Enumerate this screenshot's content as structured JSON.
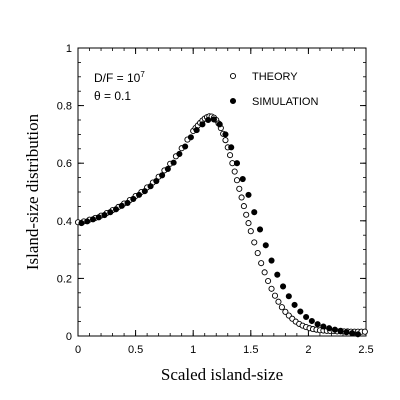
{
  "chart_data": {
    "type": "scatter",
    "xlabel": "Scaled island-size",
    "ylabel": "Island-size distribution",
    "xlim": [
      0,
      2.5
    ],
    "ylim": [
      0,
      1
    ],
    "xticks": [
      0,
      0.5,
      1,
      1.5,
      2,
      2.5
    ],
    "yticks": [
      0,
      0.2,
      0.4,
      0.6,
      0.8,
      1
    ],
    "xtick_labels": [
      "0",
      "0.5",
      "1",
      "1.5",
      "2",
      "2.5"
    ],
    "ytick_labels": [
      "0",
      "0.2",
      "0.4",
      "0.6",
      "0.8",
      "1"
    ],
    "grid": false,
    "legend_position": "top-right",
    "annotations": {
      "line1_prefix": "D/F = 10",
      "line1_exponent": "7",
      "line2": "θ = 0.1"
    },
    "series": [
      {
        "name": "THEORY",
        "marker": "open-circle",
        "x": [
          0.0,
          0.05,
          0.1,
          0.15,
          0.2,
          0.25,
          0.3,
          0.35,
          0.4,
          0.45,
          0.5,
          0.55,
          0.6,
          0.65,
          0.7,
          0.75,
          0.8,
          0.85,
          0.9,
          0.95,
          1.0,
          1.02,
          1.04,
          1.06,
          1.08,
          1.1,
          1.12,
          1.14,
          1.16,
          1.18,
          1.2,
          1.22,
          1.24,
          1.26,
          1.28,
          1.3,
          1.32,
          1.34,
          1.36,
          1.38,
          1.4,
          1.42,
          1.44,
          1.46,
          1.48,
          1.5,
          1.53,
          1.56,
          1.59,
          1.62,
          1.65,
          1.68,
          1.71,
          1.74,
          1.77,
          1.8,
          1.83,
          1.86,
          1.89,
          1.92,
          1.95,
          1.98,
          2.01,
          2.04,
          2.07,
          2.1,
          2.13,
          2.16,
          2.19,
          2.22,
          2.25,
          2.28,
          2.31,
          2.34,
          2.37,
          2.4,
          2.43,
          2.46,
          2.49
        ],
        "y": [
          0.395,
          0.398,
          0.404,
          0.41,
          0.418,
          0.427,
          0.437,
          0.448,
          0.46,
          0.472,
          0.486,
          0.5,
          0.516,
          0.533,
          0.553,
          0.575,
          0.598,
          0.624,
          0.652,
          0.682,
          0.712,
          0.722,
          0.731,
          0.74,
          0.748,
          0.755,
          0.76,
          0.763,
          0.762,
          0.758,
          0.75,
          0.738,
          0.722,
          0.702,
          0.68,
          0.655,
          0.628,
          0.6,
          0.571,
          0.541,
          0.511,
          0.481,
          0.451,
          0.421,
          0.392,
          0.364,
          0.325,
          0.288,
          0.253,
          0.221,
          0.191,
          0.164,
          0.14,
          0.119,
          0.1,
          0.084,
          0.071,
          0.06,
          0.05,
          0.042,
          0.036,
          0.031,
          0.027,
          0.024,
          0.022,
          0.02,
          0.019,
          0.018,
          0.017,
          0.017,
          0.016,
          0.016,
          0.016,
          0.016,
          0.015,
          0.015,
          0.015,
          0.015,
          0.015
        ]
      },
      {
        "name": "SIMULATION",
        "marker": "filled-circle",
        "x": [
          0.03,
          0.08,
          0.13,
          0.18,
          0.23,
          0.28,
          0.33,
          0.38,
          0.43,
          0.48,
          0.53,
          0.58,
          0.63,
          0.68,
          0.73,
          0.78,
          0.83,
          0.88,
          0.93,
          0.98,
          1.03,
          1.08,
          1.13,
          1.18,
          1.23,
          1.28,
          1.33,
          1.38,
          1.43,
          1.48,
          1.53,
          1.58,
          1.63,
          1.68,
          1.73,
          1.78,
          1.83,
          1.88,
          1.93,
          1.98,
          2.03,
          2.08,
          2.13,
          2.18,
          2.23,
          2.28,
          2.33,
          2.38,
          2.43
        ],
        "y": [
          0.392,
          0.398,
          0.405,
          0.412,
          0.42,
          0.43,
          0.44,
          0.452,
          0.462,
          0.476,
          0.49,
          0.503,
          0.52,
          0.538,
          0.558,
          0.58,
          0.602,
          0.632,
          0.658,
          0.69,
          0.715,
          0.735,
          0.75,
          0.752,
          0.735,
          0.7,
          0.655,
          0.6,
          0.545,
          0.49,
          0.43,
          0.37,
          0.315,
          0.262,
          0.213,
          0.172,
          0.138,
          0.108,
          0.085,
          0.066,
          0.052,
          0.041,
          0.033,
          0.027,
          0.022,
          0.018,
          0.013,
          0.01,
          0.006
        ]
      }
    ]
  }
}
